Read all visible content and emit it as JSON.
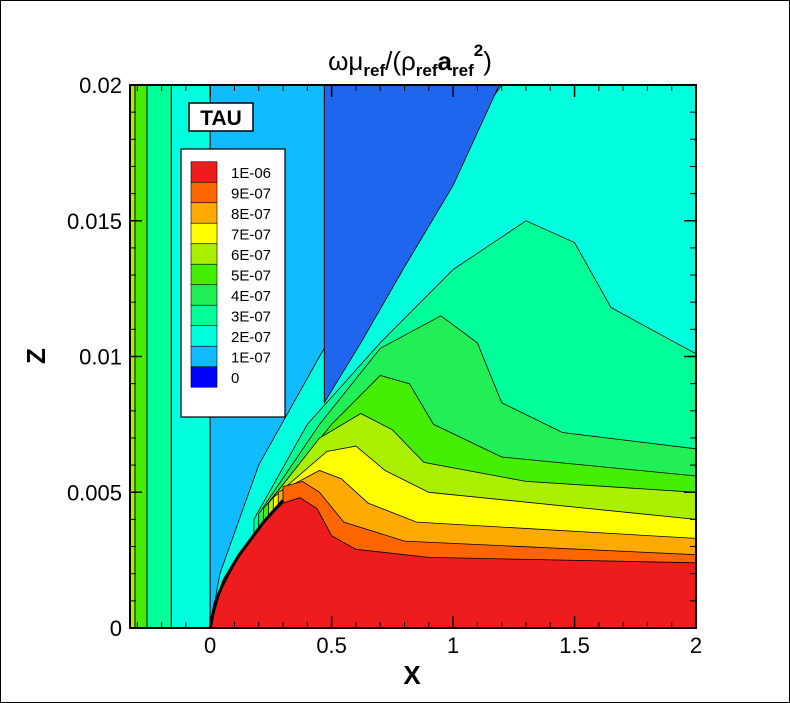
{
  "chart_data": {
    "type": "contour",
    "title": {
      "main": "ωμ",
      "sub1": "ref",
      "mid": "/(ρ",
      "sub2": "ref",
      "a": "a",
      "sub3": "ref",
      "sup": "2",
      "close": ")"
    },
    "xlabel": "X",
    "ylabel": "Z",
    "xlim": [
      -0.33,
      2.0
    ],
    "ylim": [
      0,
      0.02
    ],
    "xticks": [
      0,
      0.5,
      1,
      1.5,
      2
    ],
    "xtick_labels": [
      "0",
      "0.5",
      "1",
      "1.5",
      "2"
    ],
    "yticks": [
      0,
      0.005,
      0.01,
      0.015,
      0.02
    ],
    "ytick_labels": [
      "0",
      "0.005",
      "0.01",
      "0.015",
      "0.02"
    ],
    "annotation": "TAU",
    "legend": {
      "placement": "upper-left",
      "levels": [
        {
          "label": "1E-06",
          "value": 1e-06,
          "color": "#ee1c1c"
        },
        {
          "label": "9E-07",
          "value": 9e-07,
          "color": "#ff6600"
        },
        {
          "label": "8E-07",
          "value": 8e-07,
          "color": "#ffaa00"
        },
        {
          "label": "7E-07",
          "value": 7e-07,
          "color": "#ffff00"
        },
        {
          "label": "6E-07",
          "value": 6e-07,
          "color": "#aaee00"
        },
        {
          "label": "5E-07",
          "value": 5e-07,
          "color": "#44ee00"
        },
        {
          "label": "4E-07",
          "value": 4e-07,
          "color": "#22ee55"
        },
        {
          "label": "3E-07",
          "value": 3e-07,
          "color": "#00ff99"
        },
        {
          "label": "2E-07",
          "value": 2e-07,
          "color": "#00ffdd"
        },
        {
          "label": "1E-07",
          "value": 1e-07,
          "color": "#11bbff"
        },
        {
          "label": "0",
          "value": 0,
          "color": "#0000ff"
        }
      ]
    },
    "bands": [
      {
        "name": "band-light-blue-field",
        "color": "#11bbff",
        "points": [
          [
            -0.33,
            0
          ],
          [
            0.0,
            0
          ],
          [
            0.0,
            0.02
          ],
          [
            -0.33,
            0.02
          ]
        ]
      },
      {
        "name": "band-cyan-upper-right",
        "color": "#00ffdd",
        "points": [
          [
            0.0,
            0
          ],
          [
            2.0,
            0
          ],
          [
            2.0,
            0.02
          ],
          [
            0.0,
            0.02
          ]
        ]
      },
      {
        "name": "band-cyan-left-strip",
        "color": "#00ffdd",
        "points": [
          [
            -0.16,
            0
          ],
          [
            0.0,
            0
          ],
          [
            0.0,
            0.02
          ],
          [
            -0.16,
            0.02
          ]
        ]
      },
      {
        "name": "band-light-blue-wedge",
        "color": "#11bbff",
        "points": [
          [
            0.0,
            0
          ],
          [
            0.04,
            0.002
          ],
          [
            0.2,
            0.006
          ],
          [
            0.45,
            0.01
          ],
          [
            0.72,
            0.014
          ],
          [
            1.0,
            0.0175
          ],
          [
            1.2,
            0.02
          ],
          [
            0.0,
            0.02
          ]
        ]
      },
      {
        "name": "band-blue-shock-layer",
        "color": "#1f66ee",
        "points": [
          [
            0.47,
            0.0083
          ],
          [
            0.62,
            0.0105
          ],
          [
            0.8,
            0.0133
          ],
          [
            1.0,
            0.0163
          ],
          [
            1.19,
            0.02
          ],
          [
            0.47,
            0.02
          ]
        ]
      },
      {
        "name": "band-seafoam",
        "color": "#00ff99",
        "points": [
          [
            0.18,
            0.004
          ],
          [
            0.4,
            0.0075
          ],
          [
            0.7,
            0.0105
          ],
          [
            1.0,
            0.0132
          ],
          [
            1.3,
            0.015
          ],
          [
            1.5,
            0.0142
          ],
          [
            1.65,
            0.0118
          ],
          [
            2.0,
            0.0101
          ],
          [
            2.0,
            0
          ],
          [
            0.18,
            0
          ]
        ]
      },
      {
        "name": "band-green-4",
        "color": "#22ee55",
        "points": [
          [
            0.2,
            0.0042
          ],
          [
            0.45,
            0.0075
          ],
          [
            0.7,
            0.0103
          ],
          [
            0.95,
            0.0115
          ],
          [
            1.1,
            0.0105
          ],
          [
            1.2,
            0.0083
          ],
          [
            1.45,
            0.0072
          ],
          [
            2.0,
            0.0066
          ],
          [
            2.0,
            0
          ],
          [
            0.2,
            0
          ]
        ]
      },
      {
        "name": "band-green-5",
        "color": "#44ee00",
        "points": [
          [
            0.22,
            0.0044
          ],
          [
            0.5,
            0.0075
          ],
          [
            0.7,
            0.0093
          ],
          [
            0.82,
            0.009
          ],
          [
            0.92,
            0.0075
          ],
          [
            1.2,
            0.0063
          ],
          [
            2.0,
            0.0056
          ],
          [
            2.0,
            0
          ],
          [
            0.22,
            0
          ]
        ]
      },
      {
        "name": "band-yellowgreen",
        "color": "#aaee00",
        "points": [
          [
            0.24,
            0.0046
          ],
          [
            0.45,
            0.007
          ],
          [
            0.62,
            0.0079
          ],
          [
            0.75,
            0.0073
          ],
          [
            0.88,
            0.0061
          ],
          [
            1.3,
            0.0054
          ],
          [
            2.0,
            0.005
          ],
          [
            2.0,
            0
          ],
          [
            0.24,
            0
          ]
        ]
      },
      {
        "name": "band-yellow",
        "color": "#ffff00",
        "points": [
          [
            0.26,
            0.0048
          ],
          [
            0.48,
            0.0065
          ],
          [
            0.6,
            0.0067
          ],
          [
            0.72,
            0.0058
          ],
          [
            0.9,
            0.005
          ],
          [
            2.0,
            0.004
          ],
          [
            2.0,
            0
          ],
          [
            0.26,
            0
          ]
        ]
      },
      {
        "name": "band-orange",
        "color": "#ffaa00",
        "points": [
          [
            0.28,
            0.005
          ],
          [
            0.45,
            0.0058
          ],
          [
            0.54,
            0.0055
          ],
          [
            0.65,
            0.0046
          ],
          [
            0.85,
            0.0039
          ],
          [
            2.0,
            0.0033
          ],
          [
            2.0,
            0
          ],
          [
            0.28,
            0
          ]
        ]
      },
      {
        "name": "band-dark-orange",
        "color": "#ff6600",
        "points": [
          [
            0.3,
            0.0052
          ],
          [
            0.38,
            0.0054
          ],
          [
            0.45,
            0.005
          ],
          [
            0.55,
            0.0039
          ],
          [
            0.8,
            0.0032
          ],
          [
            2.0,
            0.0027
          ],
          [
            2.0,
            0
          ],
          [
            0.3,
            0
          ]
        ]
      },
      {
        "name": "band-red",
        "color": "#ee1c1c",
        "points": [
          [
            0.0,
            0
          ],
          [
            0.04,
            0.0013
          ],
          [
            0.12,
            0.0027
          ],
          [
            0.22,
            0.0039
          ],
          [
            0.3,
            0.0046
          ],
          [
            0.37,
            0.0048
          ],
          [
            0.44,
            0.0044
          ],
          [
            0.5,
            0.0034
          ],
          [
            0.6,
            0.0029
          ],
          [
            0.9,
            0.0026
          ],
          [
            2.0,
            0.0024
          ],
          [
            2.0,
            0
          ]
        ]
      },
      {
        "name": "band-green-left-strip",
        "color": "#44ee00",
        "points": [
          [
            -0.31,
            0
          ],
          [
            -0.26,
            0
          ],
          [
            -0.26,
            0.02
          ],
          [
            -0.31,
            0.02
          ]
        ]
      },
      {
        "name": "band-seafoam-left-strip",
        "color": "#00ff99",
        "points": [
          [
            -0.26,
            0
          ],
          [
            -0.16,
            0
          ],
          [
            -0.16,
            0.02
          ],
          [
            -0.26,
            0.02
          ]
        ]
      },
      {
        "name": "band-yellowgreen-left-edge",
        "color": "#aaee00",
        "points": [
          [
            -0.33,
            0
          ],
          [
            -0.31,
            0
          ],
          [
            -0.31,
            0.02
          ],
          [
            -0.33,
            0.02
          ]
        ]
      }
    ],
    "vertical_lines_x": [
      -0.31,
      -0.26,
      -0.16,
      0.0,
      0.47
    ],
    "body_surface": [
      [
        0.0,
        0
      ],
      [
        0.02,
        0.0009
      ],
      [
        0.06,
        0.0018
      ],
      [
        0.12,
        0.0027
      ],
      [
        0.22,
        0.0039
      ],
      [
        0.3,
        0.0047
      ]
    ]
  }
}
